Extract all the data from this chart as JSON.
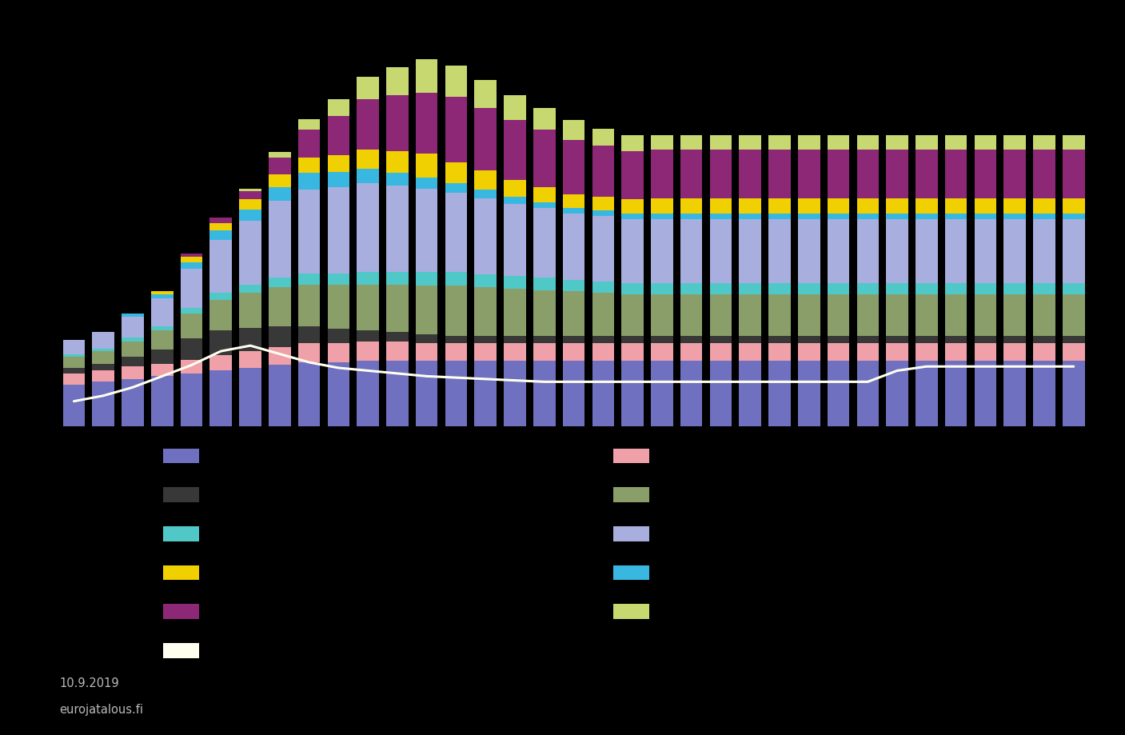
{
  "background_color": "#000000",
  "n_bars": 35,
  "series_order": [
    "blue_medium",
    "pink",
    "dark_grey",
    "olive_green",
    "teal",
    "light_lavender",
    "cyan",
    "yellow",
    "purple",
    "light_yellow_green"
  ],
  "series": {
    "blue_medium": [
      30,
      32,
      34,
      36,
      38,
      40,
      42,
      44,
      46,
      46,
      47,
      47,
      47,
      47,
      47,
      47,
      47,
      47,
      47,
      47,
      47,
      47,
      47,
      47,
      47,
      47,
      47,
      47,
      47,
      47,
      47,
      47,
      47,
      47,
      47
    ],
    "pink": [
      8,
      8,
      9,
      9,
      10,
      11,
      12,
      13,
      14,
      14,
      14,
      14,
      13,
      13,
      13,
      13,
      13,
      13,
      13,
      13,
      13,
      13,
      13,
      13,
      13,
      13,
      13,
      13,
      13,
      13,
      13,
      13,
      13,
      13,
      13
    ],
    "dark_grey": [
      4,
      5,
      7,
      10,
      15,
      18,
      17,
      15,
      12,
      10,
      8,
      7,
      6,
      5,
      5,
      5,
      5,
      5,
      5,
      5,
      5,
      5,
      5,
      5,
      5,
      5,
      5,
      5,
      5,
      5,
      5,
      5,
      5,
      5,
      5
    ],
    "olive_green": [
      8,
      9,
      11,
      14,
      18,
      22,
      25,
      28,
      30,
      32,
      33,
      34,
      35,
      36,
      35,
      34,
      33,
      32,
      31,
      30,
      30,
      30,
      30,
      30,
      30,
      30,
      30,
      30,
      30,
      30,
      30,
      30,
      30,
      30,
      30
    ],
    "teal": [
      2,
      2,
      3,
      3,
      4,
      5,
      6,
      7,
      8,
      8,
      9,
      9,
      10,
      10,
      9,
      9,
      9,
      8,
      8,
      8,
      8,
      8,
      8,
      8,
      8,
      8,
      8,
      8,
      8,
      8,
      8,
      8,
      8,
      8,
      8
    ],
    "light_lavender": [
      10,
      12,
      15,
      20,
      28,
      38,
      46,
      55,
      60,
      62,
      64,
      62,
      60,
      57,
      55,
      52,
      50,
      48,
      47,
      46,
      46,
      46,
      46,
      46,
      46,
      46,
      46,
      46,
      46,
      46,
      46,
      46,
      46,
      46,
      46
    ],
    "cyan": [
      0,
      0,
      2,
      3,
      5,
      7,
      8,
      10,
      12,
      11,
      10,
      9,
      8,
      7,
      6,
      5,
      4,
      4,
      4,
      4,
      4,
      4,
      4,
      4,
      4,
      4,
      4,
      4,
      4,
      4,
      4,
      4,
      4,
      4,
      4
    ],
    "yellow": [
      0,
      0,
      0,
      2,
      4,
      5,
      7,
      9,
      11,
      12,
      14,
      16,
      17,
      15,
      14,
      12,
      11,
      10,
      10,
      10,
      11,
      11,
      11,
      11,
      11,
      11,
      11,
      11,
      11,
      11,
      11,
      11,
      11,
      11,
      11
    ],
    "purple": [
      0,
      0,
      0,
      0,
      2,
      4,
      6,
      12,
      20,
      28,
      36,
      40,
      44,
      47,
      45,
      43,
      41,
      39,
      37,
      35,
      35,
      35,
      35,
      35,
      35,
      35,
      35,
      35,
      35,
      35,
      35,
      35,
      35,
      35,
      35
    ],
    "light_yellow_green": [
      0,
      0,
      0,
      0,
      0,
      0,
      2,
      4,
      8,
      12,
      16,
      20,
      24,
      22,
      20,
      18,
      16,
      14,
      12,
      11,
      10,
      10,
      10,
      10,
      10,
      10,
      10,
      10,
      10,
      10,
      10,
      10,
      10,
      10,
      10
    ]
  },
  "colors": {
    "blue_medium": "#7070C0",
    "pink": "#F0A0A8",
    "dark_grey": "#383838",
    "olive_green": "#8A9E6A",
    "teal": "#50C8C8",
    "light_lavender": "#A8AEDD",
    "cyan": "#38B8E0",
    "yellow": "#F0D000",
    "purple": "#8C2876",
    "light_yellow_green": "#C8D870"
  },
  "line_data": [
    18,
    22,
    28,
    36,
    44,
    54,
    58,
    52,
    46,
    42,
    40,
    38,
    36,
    35,
    34,
    33,
    32,
    32,
    32,
    32,
    32,
    32,
    32,
    32,
    32,
    32,
    32,
    32,
    40,
    43,
    43,
    43,
    43,
    43,
    43
  ],
  "line_color": "#FFFFF0",
  "text_color": "#BBBBBB",
  "date_text": "10.9.2019",
  "source_text": "eurojatalous.fi",
  "legend_left_colors": [
    "#7070C0",
    "#383838",
    "#50C8C8",
    "#F0D000",
    "#8C2876",
    "#FFFFF0"
  ],
  "legend_right_colors": [
    "#F0A0A8",
    "#8A9E6A",
    "#A8AEDD",
    "#38B8E0",
    "#C8D870"
  ]
}
